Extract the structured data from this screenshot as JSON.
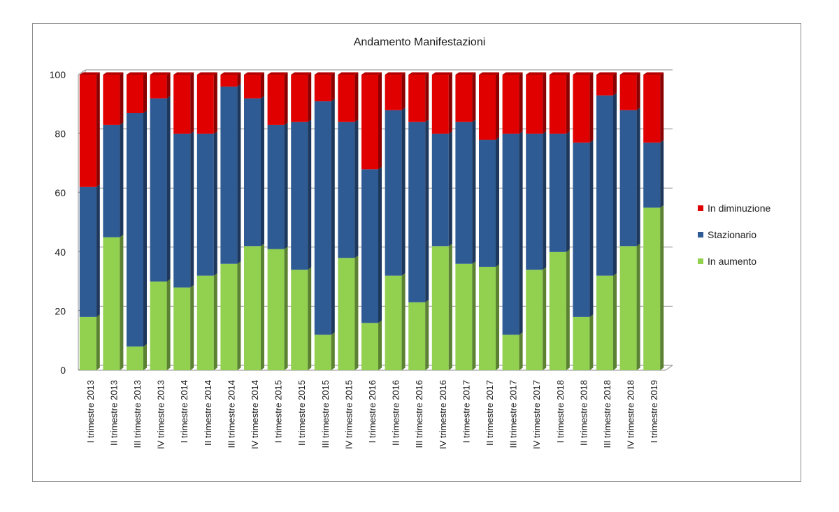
{
  "chart_data": {
    "type": "bar",
    "stacked": true,
    "title": "Andamento Manifestazioni",
    "xlabel": "",
    "ylabel": "",
    "ylim": [
      0,
      100
    ],
    "yticks": [
      0,
      20,
      40,
      60,
      80,
      100
    ],
    "categories": [
      "I trimestre 2013",
      "II trimestre 2013",
      "III trimestre 2013",
      "IV trimestre 2013",
      "I trimestre 2014",
      "II trimestre 2014",
      "III trimestre 2014",
      "IV trimestre 2014",
      "I trimestre 2015",
      "II trimestre 2015",
      "III trimestre 2015",
      "IV trimestre 2015",
      "I trimestre 2016",
      "II trimestre 2016",
      "III trimestre 2016",
      "IV trimestre 2016",
      "I trimestre 2017",
      "II trimestre 2017",
      "III trimestre 2017",
      "IV trimestre 2017",
      "I trimestre 2018",
      "II trimestre 2018",
      "III trimestre 2018",
      "IV trimestre 2018",
      "I trimestre 2019"
    ],
    "series": [
      {
        "name": "In aumento",
        "color": "#92d050",
        "values": [
          18,
          45,
          8,
          30,
          28,
          32,
          36,
          42,
          41,
          34,
          12,
          38,
          16,
          32,
          23,
          42,
          36,
          35,
          12,
          34,
          40,
          18,
          32,
          42,
          55
        ]
      },
      {
        "name": "Stazionario",
        "color": "#2e5b94",
        "values": [
          44,
          38,
          79,
          62,
          52,
          48,
          60,
          50,
          42,
          50,
          79,
          46,
          52,
          56,
          61,
          38,
          48,
          43,
          68,
          46,
          40,
          59,
          61,
          46,
          22
        ]
      },
      {
        "name": "In diminuzione",
        "color": "#e00000",
        "values": [
          38,
          17,
          13,
          8,
          20,
          20,
          4,
          8,
          17,
          16,
          9,
          16,
          32,
          12,
          16,
          20,
          16,
          22,
          20,
          20,
          20,
          23,
          7,
          12,
          23
        ]
      }
    ],
    "legend_order": [
      "In diminuzione",
      "Stazionario",
      "In aumento"
    ],
    "legend_position": "right",
    "grid": true
  }
}
